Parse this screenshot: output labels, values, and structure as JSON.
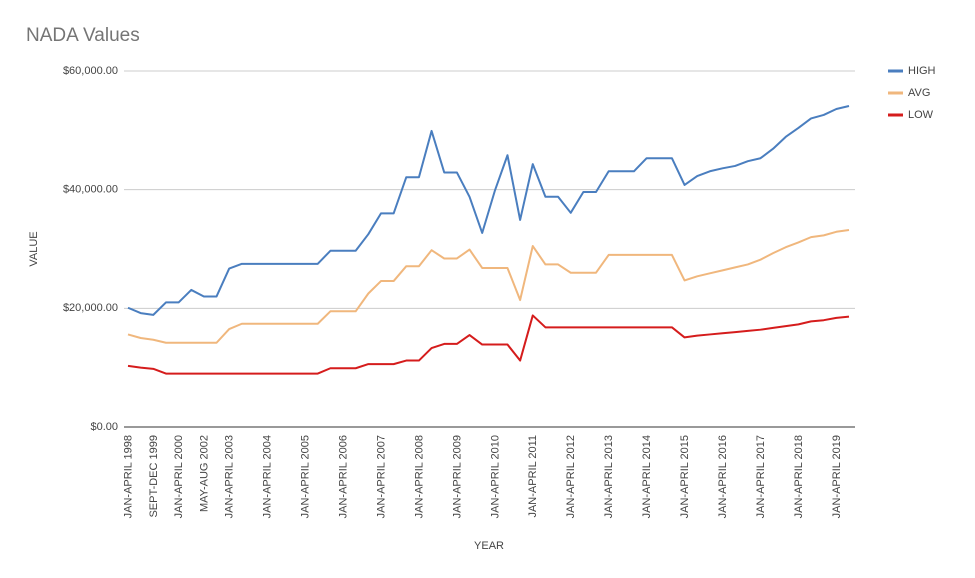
{
  "chart_data": {
    "type": "line",
    "title": "NADA Values",
    "x_label": "YEAR",
    "y_label": "VALUE",
    "categories": [
      "JAN-APRIL 1998",
      null,
      "SEPT-DEC 1999",
      null,
      "JAN-APRIL 2000",
      null,
      "MAY-AUG 2002",
      null,
      "JAN-APRIL 2003",
      null,
      null,
      "JAN-APRIL 2004",
      null,
      null,
      "JAN-APRIL 2005",
      null,
      null,
      "JAN-APRIL 2006",
      null,
      null,
      "JAN-APRIL 2007",
      null,
      null,
      "JAN-APRIL 2008",
      null,
      null,
      "JAN-APRIL 2009",
      null,
      null,
      "JAN-APRIL 2010",
      null,
      null,
      "JAN-APRIL 2011",
      null,
      null,
      "JAN-APRIL 2012",
      null,
      null,
      "JAN-APRIL 2013",
      null,
      null,
      "JAN-APRIL 2014",
      null,
      null,
      "JAN-APRIL 2015",
      null,
      null,
      "JAN-APRIL 2016",
      null,
      null,
      "JAN-APRIL 2017",
      null,
      null,
      "JAN-APRIL 2018",
      null,
      null,
      "JAN-APRIL 2019",
      null
    ],
    "series": [
      {
        "name": "HIGH",
        "color": "#4a7ebf",
        "values": [
          20100,
          19200,
          18900,
          21000,
          21000,
          23100,
          22000,
          22000,
          26700,
          27500,
          27500,
          27500,
          27500,
          27500,
          27500,
          27500,
          29700,
          29700,
          29700,
          32500,
          36000,
          36000,
          42100,
          42100,
          49900,
          42900,
          42900,
          38800,
          32700,
          39800,
          45800,
          34900,
          44300,
          38800,
          38800,
          36100,
          39600,
          39600,
          43100,
          43100,
          43100,
          45300,
          45300,
          45300,
          40800,
          42300,
          43100,
          43600,
          44000,
          44800,
          45300,
          46900,
          48900,
          50400,
          52000,
          52600,
          53600,
          54100
        ]
      },
      {
        "name": "AVG",
        "color": "#f0b77d",
        "values": [
          15600,
          15000,
          14700,
          14200,
          14200,
          14200,
          14200,
          14200,
          16500,
          17400,
          17400,
          17400,
          17400,
          17400,
          17400,
          17400,
          19500,
          19500,
          19500,
          22500,
          24600,
          24600,
          27100,
          27100,
          29800,
          28400,
          28400,
          29900,
          26800,
          26800,
          26800,
          21400,
          30500,
          27400,
          27400,
          26000,
          26000,
          26000,
          29000,
          29000,
          29000,
          29000,
          29000,
          29000,
          24700,
          25400,
          25900,
          26400,
          26900,
          27400,
          28200,
          29300,
          30300,
          31100,
          32000,
          32300,
          32900,
          33200
        ]
      },
      {
        "name": "LOW",
        "color": "#d51c1c",
        "values": [
          10300,
          10000,
          9800,
          9000,
          9000,
          9000,
          9000,
          9000,
          9000,
          9000,
          9000,
          9000,
          9000,
          9000,
          9000,
          9000,
          9900,
          9900,
          9900,
          10600,
          10600,
          10600,
          11200,
          11200,
          13300,
          14000,
          14000,
          15500,
          13900,
          13900,
          13900,
          11200,
          18800,
          16800,
          16800,
          16800,
          16800,
          16800,
          16800,
          16800,
          16800,
          16800,
          16800,
          16800,
          15100,
          15400,
          15600,
          15800,
          16000,
          16200,
          16400,
          16700,
          17000,
          17300,
          17800,
          18000,
          18400,
          18600
        ]
      }
    ],
    "ylim": [
      0,
      60000
    ],
    "yticks": [
      {
        "value": 0,
        "label": "$0.00"
      },
      {
        "value": 20000,
        "label": "$20,000.00"
      },
      {
        "value": 40000,
        "label": "$40,000.00"
      },
      {
        "value": 60000,
        "label": "$60,000.00"
      }
    ],
    "grid": true,
    "legend": "right"
  }
}
